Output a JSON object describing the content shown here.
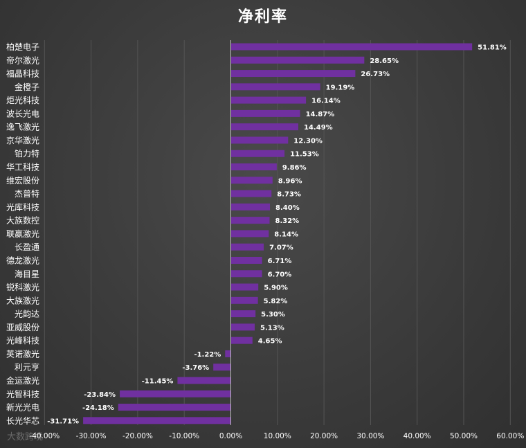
{
  "chart_data": {
    "type": "bar",
    "orientation": "horizontal",
    "title": "净利率",
    "categories": [
      "柏楚电子",
      "帝尔激光",
      "福晶科技",
      "金橙子",
      "炬光科技",
      "波长光电",
      "逸飞激光",
      "京华激光",
      "铂力特",
      "华工科技",
      "维宏股份",
      "杰普特",
      "光库科技",
      "大族数控",
      "联赢激光",
      "长盈通",
      "德龙激光",
      "海目星",
      "锐科激光",
      "大族激光",
      "光韵达",
      "亚威股份",
      "光峰科技",
      "英诺激光",
      "利元亨",
      "金运激光",
      "光智科技",
      "新光光电",
      "长光华芯"
    ],
    "values": [
      51.81,
      28.65,
      26.73,
      19.19,
      16.14,
      14.87,
      14.49,
      12.3,
      11.53,
      9.86,
      8.96,
      8.73,
      8.4,
      8.32,
      8.14,
      7.07,
      6.71,
      6.7,
      5.9,
      5.82,
      5.3,
      5.13,
      4.65,
      -1.22,
      -3.76,
      -11.45,
      -23.84,
      -24.18,
      -31.71
    ],
    "data_labels": [
      "51.81%",
      "28.65%",
      "26.73%",
      "19.19%",
      "16.14%",
      "14.87%",
      "14.49%",
      "12.30%",
      "11.53%",
      "9.86%",
      "8.96%",
      "8.73%",
      "8.40%",
      "8.32%",
      "8.14%",
      "7.07%",
      "6.71%",
      "6.70%",
      "5.90%",
      "5.82%",
      "5.30%",
      "5.13%",
      "4.65%",
      "-1.22%",
      "-3.76%",
      "-11.45%",
      "-23.84%",
      "-24.18%",
      "-31.71%"
    ],
    "xlim": [
      -40,
      60
    ],
    "x_ticks": [
      -40,
      -30,
      -20,
      -10,
      0,
      10,
      20,
      30,
      40,
      50,
      60
    ],
    "x_tick_labels": [
      "-40.00%",
      "-30.00%",
      "-20.00%",
      "-10.00%",
      "0.00%",
      "10.00%",
      "20.00%",
      "30.00%",
      "40.00%",
      "50.00%",
      "60.00%"
    ],
    "grid": true,
    "legend": "none",
    "bar_color": "#7030a0",
    "background": "#3b3b3b",
    "text_color": "#ffffff"
  },
  "watermark_text": "大数跨境"
}
